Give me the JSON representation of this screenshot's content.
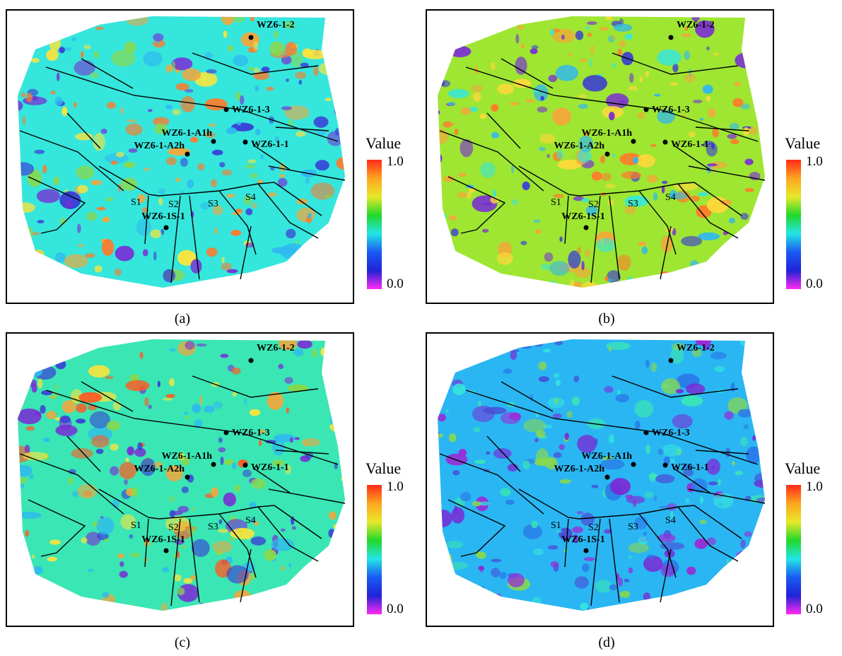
{
  "panels": [
    {
      "id": "a",
      "caption": "(a)",
      "background": "#35e6dc",
      "seed": 11,
      "blob_colors": [
        "#f5a63a",
        "#ffe43a",
        "#2fb8f0",
        "#3a3ad6",
        "#7a2ad6",
        "#8ad84a",
        "#ff7a2a"
      ]
    },
    {
      "id": "b",
      "caption": "(b)",
      "background": "#9ee632",
      "seed": 23,
      "blob_colors": [
        "#ffd83a",
        "#f5a63a",
        "#35e6dc",
        "#2fb8f0",
        "#3a3ad6",
        "#7a2ad6",
        "#ff7a2a"
      ]
    },
    {
      "id": "c",
      "caption": "(c)",
      "background": "#3ae6b4",
      "seed": 37,
      "blob_colors": [
        "#ff5a22",
        "#f5a63a",
        "#ffe43a",
        "#8ad84a",
        "#2fb8f0",
        "#3a3ad6",
        "#7a2ad6"
      ]
    },
    {
      "id": "d",
      "caption": "(d)",
      "background": "#2ab6f2",
      "seed": 53,
      "blob_colors": [
        "#35e6dc",
        "#2a7ae8",
        "#7a2ad6",
        "#3ae6b4",
        "#4a4ad6",
        "#9a2ad6",
        "#8ad84a"
      ]
    }
  ],
  "wells": [
    {
      "label": "WZ6-1-2"
    },
    {
      "label": "WZ6-1-3"
    },
    {
      "label": "WZ6-1-A1h"
    },
    {
      "label": "WZ6-1-A2h"
    },
    {
      "label": "WZ6-1-1"
    },
    {
      "label": "WZ6-1S-1"
    }
  ],
  "segments": [
    "S1",
    "S2",
    "S3",
    "S4"
  ],
  "legend": {
    "title": "Value",
    "max_label": "1.0",
    "min_label": "0.0",
    "colors": [
      "#ff2a1a",
      "#ffa51e",
      "#e8e82a",
      "#22d82a",
      "#22e6e6",
      "#1a5af2",
      "#2222d8",
      "#ff2af0"
    ]
  }
}
